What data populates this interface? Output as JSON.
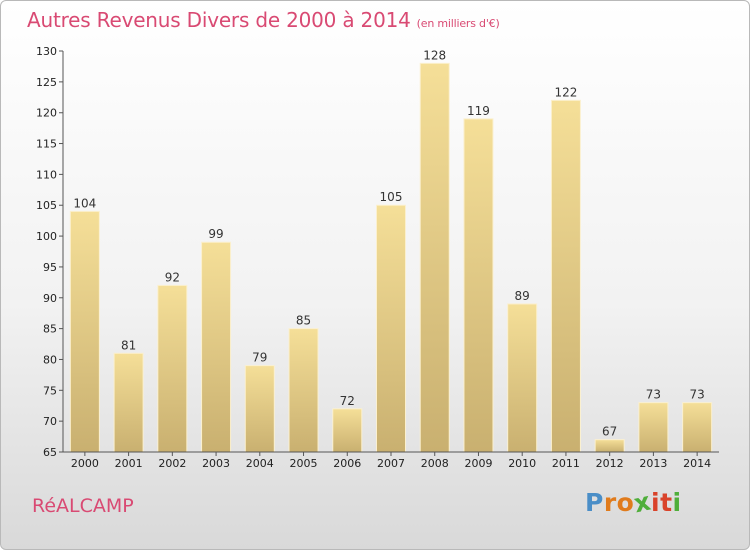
{
  "header": {
    "title": "Autres Revenus Divers de 2000 à 2014",
    "subtitle": "(en milliers d'€)"
  },
  "footer": {
    "town": "RéALCAMP",
    "logo": [
      "P",
      "r",
      "o",
      "x",
      "i",
      "t",
      "i"
    ]
  },
  "colors": {
    "title": "#d94a73",
    "bar_light": "#f5df98",
    "bar_dark": "#c9b070",
    "logo": [
      "#4a8ec7",
      "#e07b1c",
      "#e07b1c",
      "#4fae3a",
      "#d9432a",
      "#d9432a",
      "#4fae3a"
    ]
  },
  "chart_data": {
    "type": "bar",
    "title": "Autres Revenus Divers de 2000 à 2014",
    "subtitle": "(en milliers d'€)",
    "categories": [
      "2000",
      "2001",
      "2002",
      "2003",
      "2004",
      "2005",
      "2006",
      "2007",
      "2008",
      "2009",
      "2010",
      "2011",
      "2012",
      "2013",
      "2014"
    ],
    "values": [
      104,
      81,
      92,
      99,
      79,
      85,
      72,
      105,
      128,
      119,
      89,
      122,
      67,
      73,
      73
    ],
    "ylim": [
      65,
      130
    ],
    "yticks": [
      65,
      70,
      75,
      80,
      85,
      90,
      95,
      100,
      105,
      110,
      115,
      120,
      125,
      130
    ],
    "grid": false,
    "legend": "none"
  }
}
